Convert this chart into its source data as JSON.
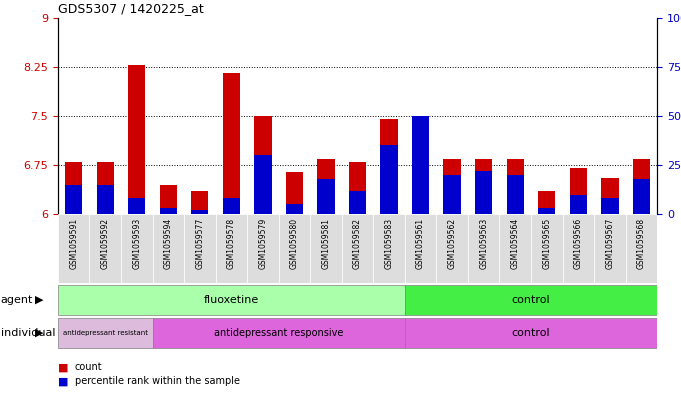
{
  "title": "GDS5307 / 1420225_at",
  "samples": [
    "GSM1059591",
    "GSM1059592",
    "GSM1059593",
    "GSM1059594",
    "GSM1059577",
    "GSM1059578",
    "GSM1059579",
    "GSM1059580",
    "GSM1059581",
    "GSM1059582",
    "GSM1059583",
    "GSM1059561",
    "GSM1059562",
    "GSM1059563",
    "GSM1059564",
    "GSM1059565",
    "GSM1059566",
    "GSM1059567",
    "GSM1059568"
  ],
  "red_values": [
    6.8,
    6.8,
    8.28,
    6.45,
    6.35,
    8.15,
    7.5,
    6.65,
    6.85,
    6.8,
    7.45,
    7.5,
    6.85,
    6.85,
    6.85,
    6.35,
    6.7,
    6.55,
    6.85
  ],
  "blue_values_pct": [
    15,
    15,
    8,
    3,
    2,
    8,
    30,
    5,
    18,
    12,
    35,
    50,
    20,
    22,
    20,
    3,
    10,
    8,
    18
  ],
  "ymin": 6.0,
  "ymax": 9.0,
  "yticks": [
    6.0,
    6.75,
    7.5,
    8.25,
    9.0
  ],
  "ytick_labels": [
    "6",
    "6.75",
    "7.5",
    "8.25",
    "9"
  ],
  "right_ytick_labels": [
    "0",
    "25",
    "50",
    "75",
    "100%"
  ],
  "hlines": [
    6.75,
    7.5,
    8.25
  ],
  "bar_color_red": "#cc0000",
  "bar_color_blue": "#0000cc",
  "bar_width": 0.55,
  "fluoxetine_count": 11,
  "resist_count": 3,
  "responsive_count": 8,
  "control_count": 8,
  "agent_flu_color": "#aaffaa",
  "agent_ctrl_color": "#44ee44",
  "ind_resist_color": "#ddbbdd",
  "ind_responsive_color": "#dd66dd",
  "ind_control_color": "#dd66dd",
  "tick_label_color_left": "#cc0000",
  "tick_label_color_right": "#0000cc",
  "sample_cell_color": "#dddddd"
}
